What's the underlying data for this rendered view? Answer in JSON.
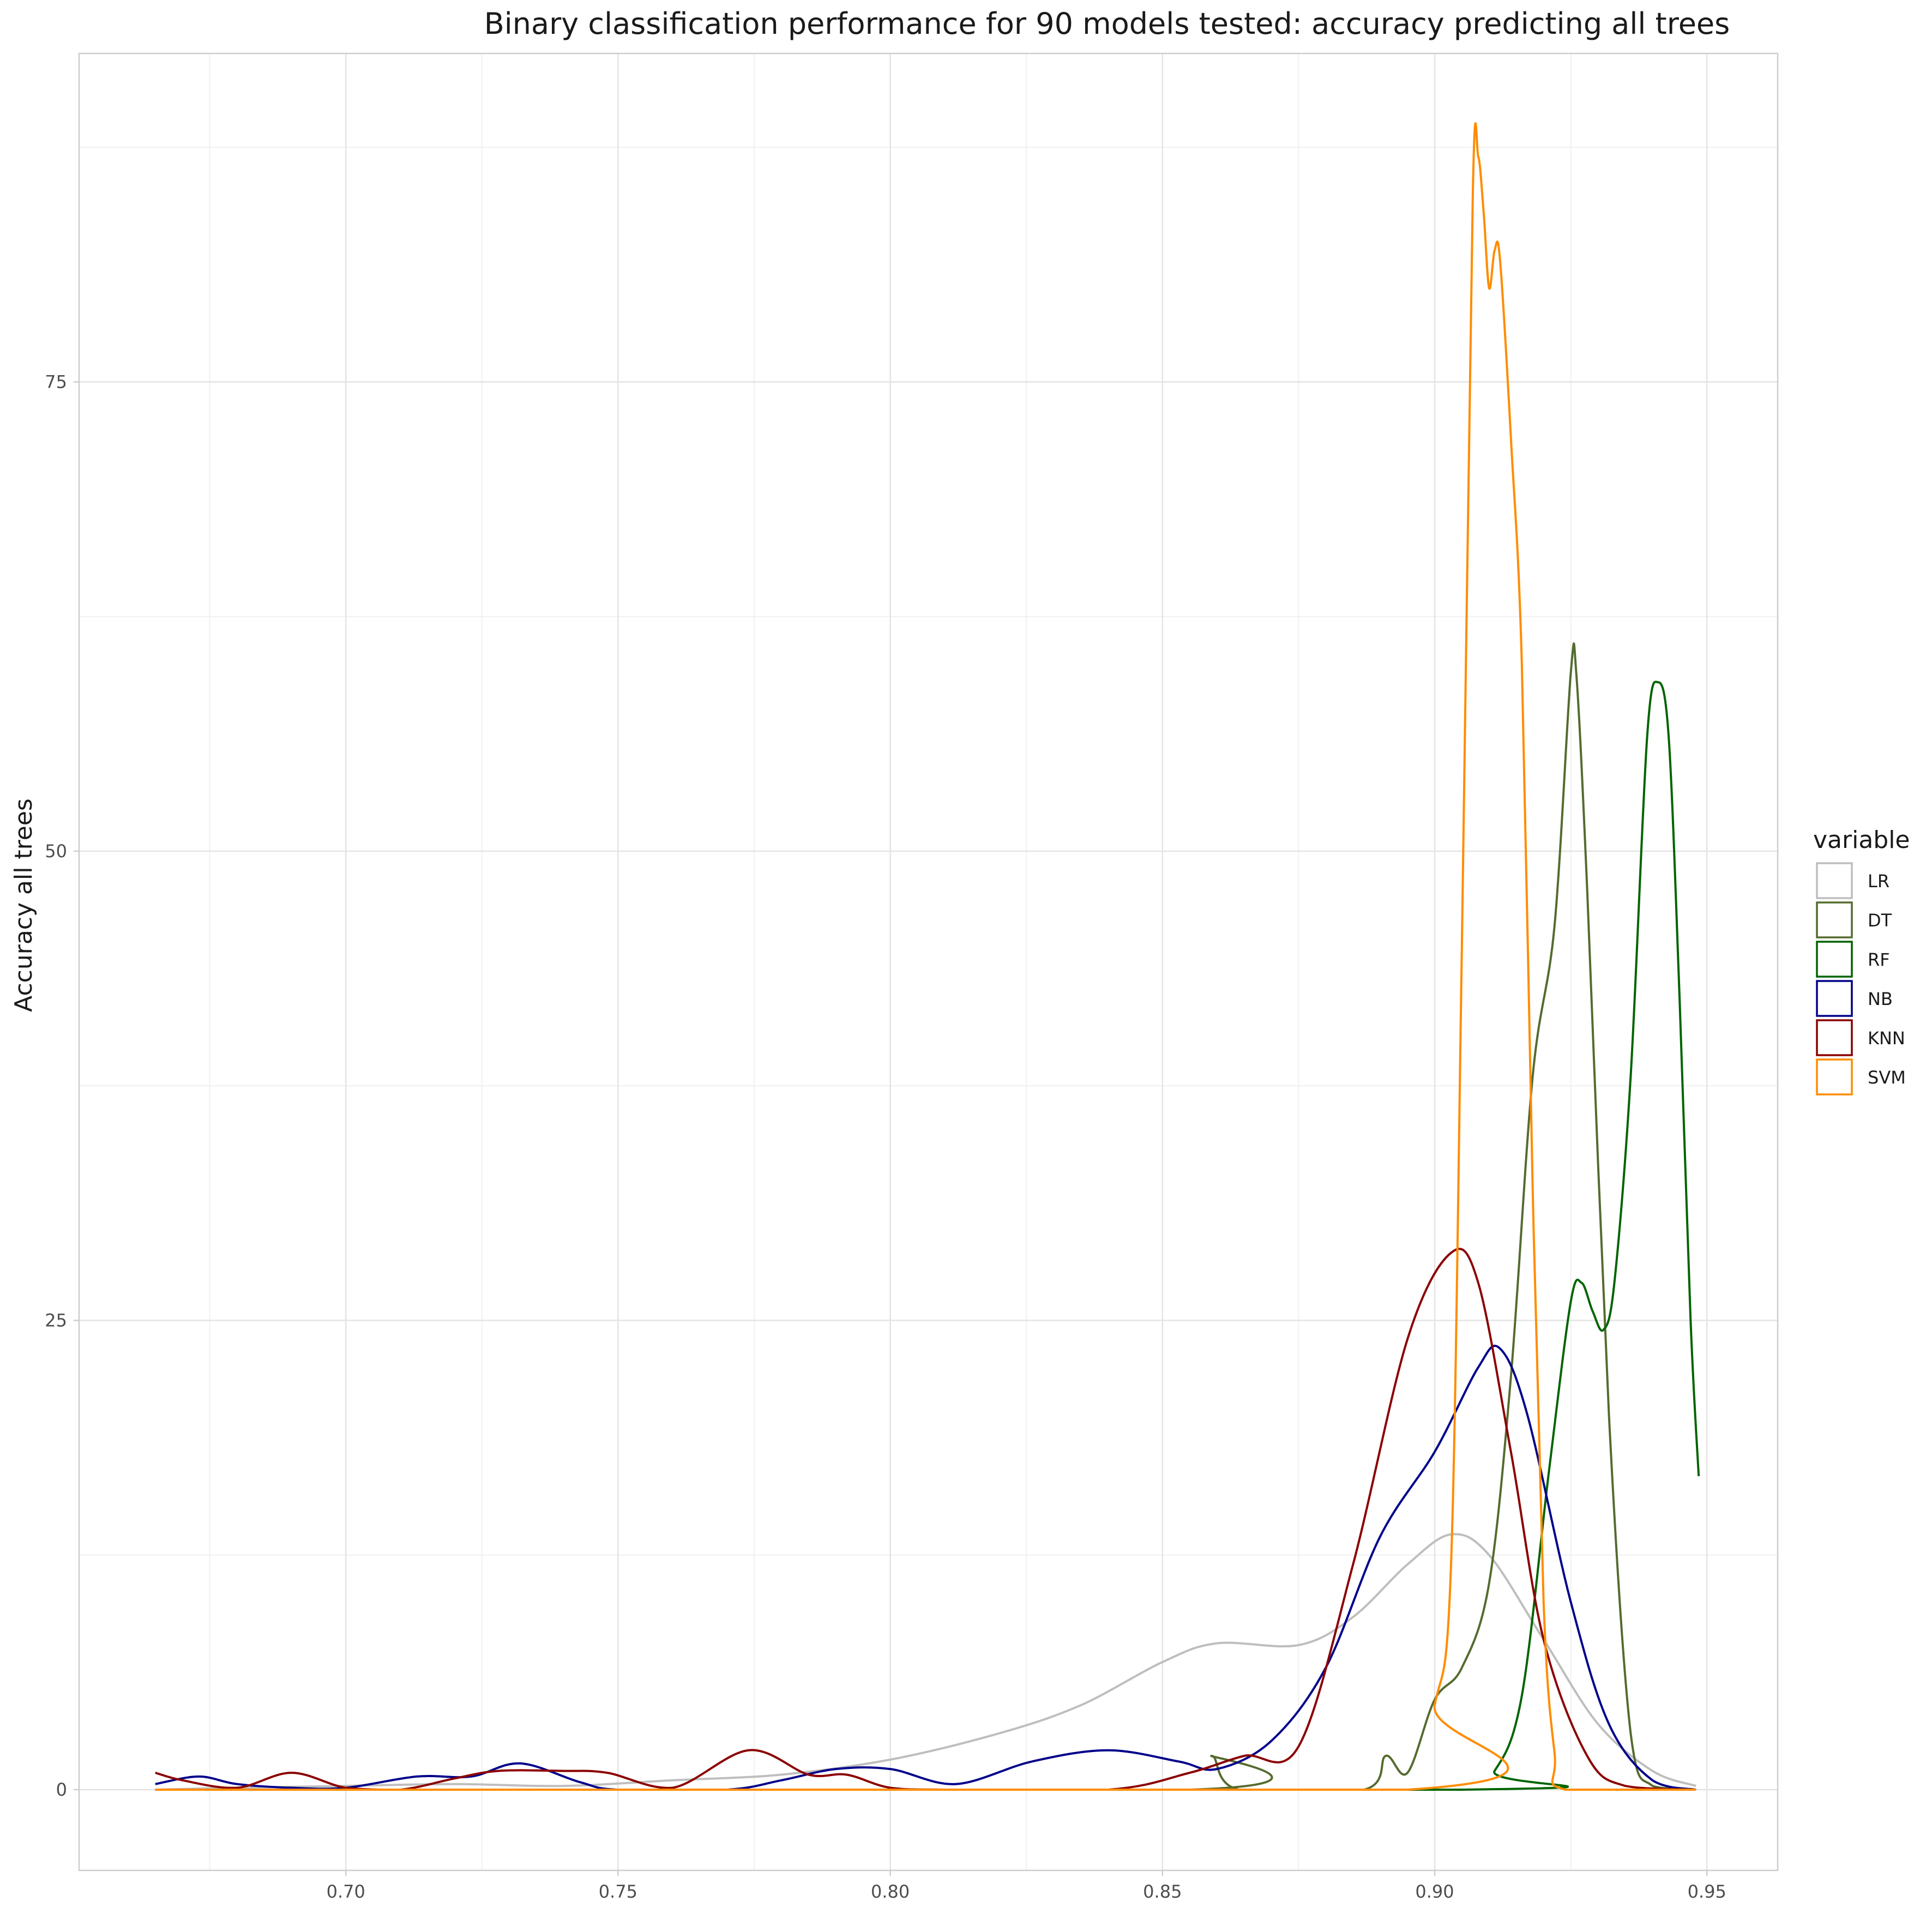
{
  "chart_data": {
    "type": "line",
    "title": "Binary classification performance for 90 models tested: accuracy predicting all trees",
    "xlabel": "",
    "ylabel": "Accuracy all trees",
    "xlim": [
      0.651,
      0.963
    ],
    "ylim": [
      -4.3,
      92.5
    ],
    "x_ticks": [
      0.7,
      0.75,
      0.8,
      0.85,
      0.9,
      0.95
    ],
    "x_tick_labels": [
      "0.70",
      "0.75",
      "0.80",
      "0.85",
      "0.90",
      "0.95"
    ],
    "y_ticks": [
      0,
      25,
      50,
      75
    ],
    "y_tick_labels": [
      "0",
      "25",
      "50",
      "75"
    ],
    "grid": true,
    "legend": {
      "title": "variable",
      "placement": "right"
    },
    "series": [
      {
        "name": "LR",
        "color": "#bebebe",
        "points": [
          [
            0.665,
            0
          ],
          [
            0.68,
            0.1
          ],
          [
            0.7,
            0.2
          ],
          [
            0.72,
            0.3
          ],
          [
            0.74,
            0.2
          ],
          [
            0.76,
            0.5
          ],
          [
            0.78,
            0.8
          ],
          [
            0.8,
            1.6
          ],
          [
            0.82,
            3.0
          ],
          [
            0.835,
            4.5
          ],
          [
            0.85,
            6.8
          ],
          [
            0.86,
            7.8
          ],
          [
            0.875,
            7.7
          ],
          [
            0.885,
            9.2
          ],
          [
            0.895,
            12.0
          ],
          [
            0.903,
            13.6
          ],
          [
            0.91,
            12.5
          ],
          [
            0.92,
            8.0
          ],
          [
            0.93,
            3.5
          ],
          [
            0.94,
            1.0
          ],
          [
            0.948,
            0.2
          ]
        ]
      },
      {
        "name": "DT",
        "color": "#556b2f",
        "points": [
          [
            0.665,
            0
          ],
          [
            0.855,
            0
          ],
          [
            0.859,
            1.8
          ],
          [
            0.864,
            0
          ],
          [
            0.887,
            0
          ],
          [
            0.891,
            1.8
          ],
          [
            0.895,
            0.9
          ],
          [
            0.9,
            4.8
          ],
          [
            0.905,
            6.5
          ],
          [
            0.91,
            11.0
          ],
          [
            0.914,
            22.0
          ],
          [
            0.918,
            38.0
          ],
          [
            0.922,
            46.0
          ],
          [
            0.925,
            59.5
          ],
          [
            0.926,
            59.5
          ],
          [
            0.928,
            48.0
          ],
          [
            0.932,
            20.0
          ],
          [
            0.936,
            3.0
          ],
          [
            0.94,
            0.2
          ],
          [
            0.948,
            0
          ]
        ]
      },
      {
        "name": "RF",
        "color": "#006400",
        "points": [
          [
            0.665,
            0
          ],
          [
            0.905,
            0
          ],
          [
            0.911,
            1.0
          ],
          [
            0.916,
            5.0
          ],
          [
            0.921,
            17.0
          ],
          [
            0.925,
            26.0
          ],
          [
            0.927,
            27.0
          ],
          [
            0.929,
            25.5
          ],
          [
            0.931,
            24.5
          ],
          [
            0.933,
            27.0
          ],
          [
            0.936,
            38.0
          ],
          [
            0.939,
            56.0
          ],
          [
            0.941,
            59.0
          ],
          [
            0.943,
            56.0
          ],
          [
            0.945,
            42.0
          ],
          [
            0.947,
            25.0
          ],
          [
            0.9485,
            16.7
          ]
        ]
      },
      {
        "name": "NB",
        "color": "#00008b",
        "points": [
          [
            0.665,
            0.3
          ],
          [
            0.673,
            0.7
          ],
          [
            0.68,
            0.3
          ],
          [
            0.69,
            0.1
          ],
          [
            0.7,
            0.1
          ],
          [
            0.713,
            0.7
          ],
          [
            0.723,
            0.7
          ],
          [
            0.732,
            1.4
          ],
          [
            0.743,
            0.4
          ],
          [
            0.75,
            0
          ],
          [
            0.77,
            0
          ],
          [
            0.78,
            0.5
          ],
          [
            0.79,
            1.1
          ],
          [
            0.8,
            1.1
          ],
          [
            0.812,
            0.3
          ],
          [
            0.826,
            1.5
          ],
          [
            0.84,
            2.1
          ],
          [
            0.853,
            1.5
          ],
          [
            0.86,
            1.1
          ],
          [
            0.87,
            2.6
          ],
          [
            0.88,
            6.5
          ],
          [
            0.89,
            13.5
          ],
          [
            0.9,
            18.0
          ],
          [
            0.908,
            22.5
          ],
          [
            0.912,
            23.5
          ],
          [
            0.917,
            20.0
          ],
          [
            0.925,
            10.0
          ],
          [
            0.932,
            3.5
          ],
          [
            0.94,
            0.5
          ],
          [
            0.948,
            0
          ]
        ]
      },
      {
        "name": "KNN",
        "color": "#8b0000",
        "points": [
          [
            0.665,
            0.9
          ],
          [
            0.67,
            0.5
          ],
          [
            0.68,
            0.1
          ],
          [
            0.69,
            0.9
          ],
          [
            0.7,
            0.1
          ],
          [
            0.71,
            0
          ],
          [
            0.72,
            0.6
          ],
          [
            0.728,
            1.0
          ],
          [
            0.74,
            1.0
          ],
          [
            0.748,
            0.9
          ],
          [
            0.76,
            0.1
          ],
          [
            0.774,
            2.1
          ],
          [
            0.785,
            0.8
          ],
          [
            0.792,
            0.8
          ],
          [
            0.8,
            0.1
          ],
          [
            0.81,
            0
          ],
          [
            0.84,
            0
          ],
          [
            0.855,
            0.9
          ],
          [
            0.865,
            1.8
          ],
          [
            0.875,
            2.3
          ],
          [
            0.885,
            12.0
          ],
          [
            0.895,
            24.0
          ],
          [
            0.903,
            28.6
          ],
          [
            0.908,
            27.0
          ],
          [
            0.914,
            18.0
          ],
          [
            0.92,
            8.0
          ],
          [
            0.928,
            1.8
          ],
          [
            0.935,
            0.2
          ],
          [
            0.948,
            0
          ]
        ]
      },
      {
        "name": "SVM",
        "color": "#ff8c00",
        "points": [
          [
            0.665,
            0
          ],
          [
            0.895,
            0
          ],
          [
            0.9,
            4.5
          ],
          [
            0.903,
            12.0
          ],
          [
            0.905,
            45.0
          ],
          [
            0.907,
            85.0
          ],
          [
            0.908,
            87.0
          ],
          [
            0.909,
            84.0
          ],
          [
            0.91,
            80.0
          ],
          [
            0.911,
            82.0
          ],
          [
            0.912,
            81.5
          ],
          [
            0.914,
            72.0
          ],
          [
            0.916,
            60.0
          ],
          [
            0.918,
            32.0
          ],
          [
            0.92,
            10.0
          ],
          [
            0.922,
            2.0
          ],
          [
            0.924,
            0
          ],
          [
            0.948,
            0
          ]
        ]
      }
    ]
  }
}
